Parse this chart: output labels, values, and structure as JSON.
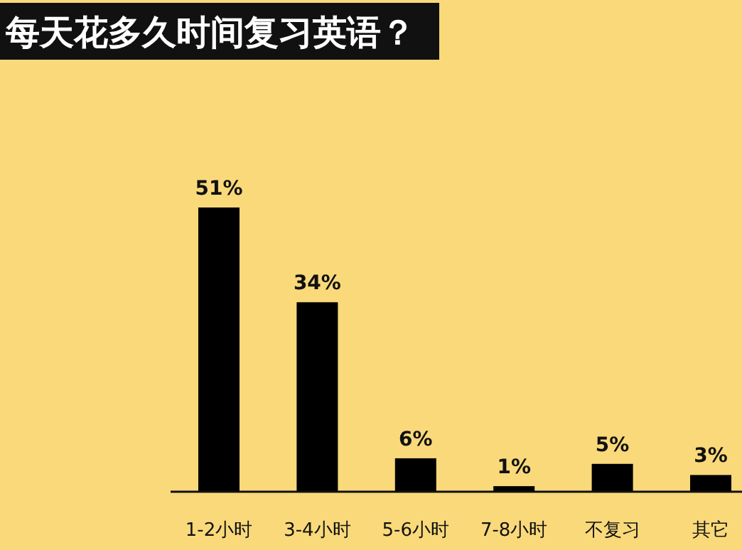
{
  "chart_data": {
    "type": "bar",
    "title": "每天花多久时间复习英语？",
    "categories": [
      "1-2小时",
      "3-4小时",
      "5-6小时",
      "7-8小时",
      "不复习",
      "其它"
    ],
    "values": [
      51,
      34,
      6,
      1,
      5,
      3
    ],
    "value_labels": [
      "51%",
      "34%",
      "6%",
      "1%",
      "5%",
      "3%"
    ],
    "color": "#000000"
  }
}
